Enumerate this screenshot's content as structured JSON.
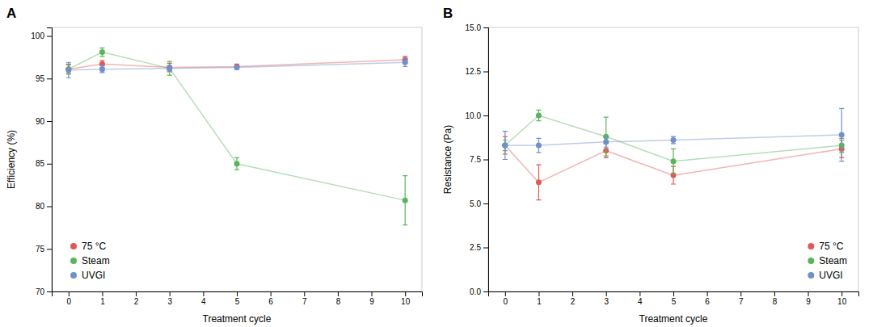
{
  "chart_data": [
    {
      "type": "line",
      "title": "A",
      "x_label": "Treatment cycle",
      "y_label": "Efficiency (%)",
      "x": [
        0,
        1,
        3,
        5,
        10
      ],
      "series": [
        {
          "name": "75 °C",
          "color": "#e05a55",
          "marker": "circle",
          "values": [
            96.1,
            96.7,
            96.3,
            96.4,
            97.2
          ],
          "errors": [
            0.5,
            0.4,
            0.5,
            0.3,
            0.4
          ]
        },
        {
          "name": "Steam",
          "color": "#5ab55a",
          "marker": "circle",
          "values": [
            96.1,
            98.1,
            96.2,
            85.0,
            80.7
          ],
          "errors": [
            0.6,
            0.5,
            0.8,
            0.7,
            2.9
          ]
        },
        {
          "name": "UVGI",
          "color": "#7090cc",
          "marker": "circle",
          "values": [
            96.0,
            96.1,
            96.2,
            96.3,
            96.9
          ],
          "errors": [
            0.9,
            0.4,
            0.3,
            0.2,
            0.5
          ]
        }
      ],
      "xlim": [
        -0.5,
        10.5
      ],
      "xticks": [
        0,
        1,
        2,
        3,
        4,
        5,
        6,
        7,
        8,
        9,
        10
      ],
      "ylim": [
        70,
        101
      ],
      "yticks": [
        70,
        75,
        80,
        85,
        90,
        95,
        100
      ],
      "grid": false,
      "legend": "lower left"
    },
    {
      "type": "line",
      "title": "B",
      "x_label": "Treatment cycle",
      "y_label": "Resistance (Pa)",
      "x": [
        0,
        1,
        3,
        5,
        10
      ],
      "series": [
        {
          "name": "75 °C",
          "color": "#e05a55",
          "marker": "circle",
          "values": [
            8.3,
            6.2,
            8.0,
            6.6,
            8.1
          ],
          "errors": [
            0.5,
            1.0,
            0.4,
            0.5,
            0.5
          ]
        },
        {
          "name": "Steam",
          "color": "#5ab55a",
          "marker": "circle",
          "values": [
            8.3,
            10.0,
            8.8,
            7.4,
            8.3
          ],
          "errors": [
            0.3,
            0.3,
            1.1,
            0.7,
            0.4
          ]
        },
        {
          "name": "UVGI",
          "color": "#7090cc",
          "marker": "circle",
          "values": [
            8.3,
            8.3,
            8.5,
            8.6,
            8.9
          ],
          "errors": [
            0.8,
            0.4,
            0.3,
            0.2,
            1.5
          ]
        }
      ],
      "xlim": [
        -0.5,
        10.5
      ],
      "xticks": [
        0,
        1,
        2,
        3,
        4,
        5,
        6,
        7,
        8,
        9,
        10
      ],
      "ylim": [
        0,
        15
      ],
      "yticks": [
        {
          "value": 0,
          "label": "0.0"
        },
        2.5,
        {
          "value": 5,
          "label": "5.0"
        },
        7.5,
        {
          "value": 10,
          "label": "10.0"
        },
        12.5,
        {
          "value": 15,
          "label": "15.0"
        }
      ],
      "grid": false,
      "legend": "lower right"
    }
  ]
}
